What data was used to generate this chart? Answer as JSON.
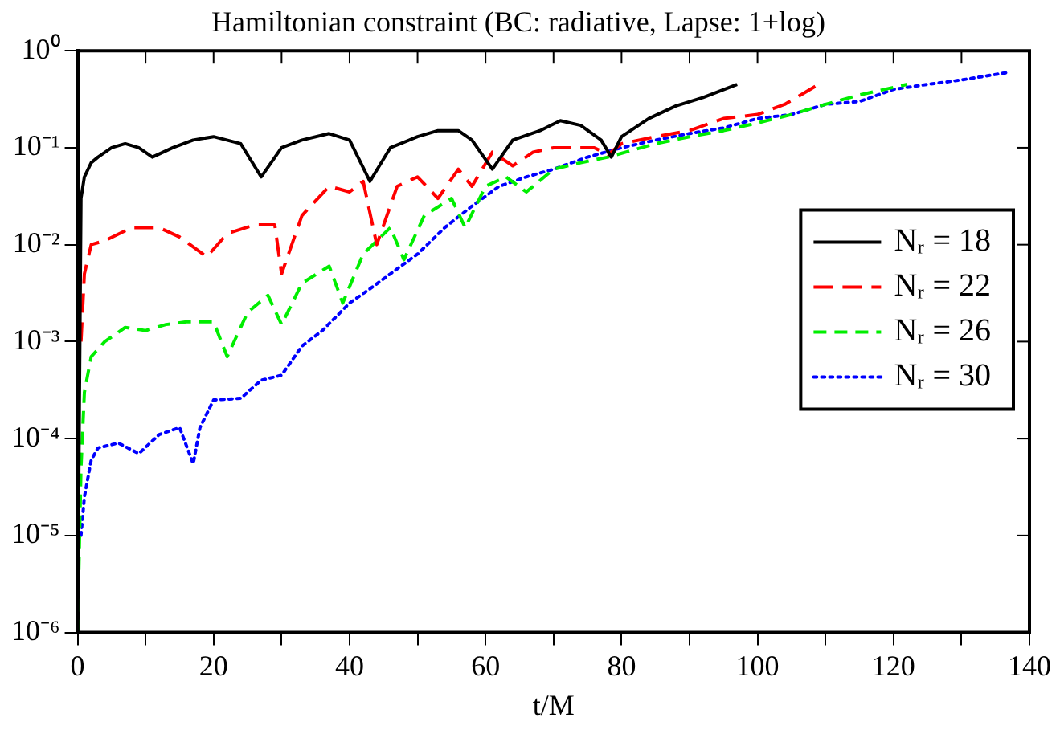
{
  "chart_data": {
    "type": "line",
    "title": "Hamiltonian constraint (BC: radiative, Lapse: 1+log)",
    "xlabel": "t/M",
    "log": "y",
    "grid": false,
    "legend": "right",
    "marker": "none",
    "xlim": [
      0,
      140
    ],
    "xticks": [
      0,
      {
        "value": 10,
        "label": null
      },
      20,
      {
        "value": 30,
        "label": null
      },
      40,
      {
        "value": 50,
        "label": null
      },
      60,
      {
        "value": 70,
        "label": null
      },
      80,
      {
        "value": 90,
        "label": null
      },
      100,
      {
        "value": 110,
        "label": null
      },
      120,
      {
        "value": 130,
        "label": null
      },
      140
    ],
    "ylim": [
      1e-06,
      1
    ],
    "yticks": [
      {
        "value": 1e-06,
        "label": "10⁻⁶"
      },
      {
        "value": 1e-05,
        "label": "10⁻⁵"
      },
      {
        "value": 0.0001,
        "label": "10⁻⁴"
      },
      {
        "value": 0.001,
        "label": "10⁻³"
      },
      {
        "value": 0.01,
        "label": "10⁻²"
      },
      {
        "value": 0.1,
        "label": "10⁻¹"
      },
      {
        "value": 1,
        "label": "10⁰"
      }
    ],
    "series": [
      {
        "name": "Nᵣ = 18",
        "color": "#000000",
        "line_style": "solid",
        "x": [
          0,
          0.5,
          1,
          2,
          3,
          5,
          7,
          9,
          11,
          14,
          17,
          20,
          24,
          27,
          30,
          33,
          37,
          40,
          43,
          46,
          50,
          53,
          56,
          58,
          61,
          64,
          68,
          71,
          74,
          77,
          78.5,
          80,
          84,
          88,
          92,
          97
        ],
        "values": [
          1e-06,
          0.03,
          0.05,
          0.07,
          0.08,
          0.1,
          0.11,
          0.1,
          0.08,
          0.1,
          0.12,
          0.13,
          0.11,
          0.05,
          0.1,
          0.12,
          0.14,
          0.12,
          0.045,
          0.1,
          0.13,
          0.15,
          0.15,
          0.12,
          0.06,
          0.12,
          0.15,
          0.19,
          0.17,
          0.12,
          0.08,
          0.13,
          0.2,
          0.27,
          0.33,
          0.45
        ]
      },
      {
        "name": "Nᵣ = 22",
        "color": "#ff0000",
        "line_style": "dashed",
        "x": [
          0.5,
          1,
          2,
          4,
          8,
          12,
          15,
          19,
          22,
          26,
          29,
          30,
          33,
          37,
          40,
          42,
          44,
          47,
          50,
          53,
          56,
          58,
          61,
          64,
          67,
          70,
          73,
          76,
          78,
          80,
          85,
          90,
          95,
          100,
          104,
          109
        ],
        "values": [
          0.001,
          0.005,
          0.01,
          0.011,
          0.015,
          0.015,
          0.012,
          0.0075,
          0.013,
          0.016,
          0.016,
          0.005,
          0.02,
          0.04,
          0.035,
          0.045,
          0.01,
          0.04,
          0.05,
          0.03,
          0.06,
          0.04,
          0.09,
          0.065,
          0.09,
          0.1,
          0.1,
          0.1,
          0.085,
          0.11,
          0.13,
          0.15,
          0.2,
          0.22,
          0.28,
          0.45
        ]
      },
      {
        "name": "Nᵣ = 26",
        "color": "#00ee00",
        "line_style": "dashed",
        "x": [
          0,
          0.5,
          1,
          2,
          4,
          7,
          10,
          13,
          16,
          20,
          22,
          25,
          28,
          30,
          33,
          37,
          39,
          42,
          46,
          48,
          51,
          55,
          57,
          60,
          63,
          66,
          70,
          74,
          78,
          85,
          90,
          95,
          100,
          105,
          110,
          115,
          122
        ],
        "values": [
          1e-06,
          5e-05,
          0.0003,
          0.0007,
          0.001,
          0.0014,
          0.0013,
          0.0015,
          0.0016,
          0.0016,
          0.0007,
          0.002,
          0.003,
          0.0015,
          0.004,
          0.006,
          0.0025,
          0.008,
          0.015,
          0.007,
          0.02,
          0.03,
          0.015,
          0.04,
          0.05,
          0.035,
          0.06,
          0.07,
          0.08,
          0.11,
          0.13,
          0.15,
          0.18,
          0.22,
          0.28,
          0.35,
          0.45
        ]
      },
      {
        "name": "Nᵣ = 30",
        "color": "#0000ff",
        "line_style": "dotted",
        "x": [
          0.5,
          1,
          2,
          3,
          6,
          9,
          12,
          15,
          17,
          18,
          20,
          24,
          27,
          30,
          33,
          36,
          40,
          43,
          46,
          50,
          54,
          58,
          62,
          66,
          70,
          75,
          80,
          85,
          90,
          95,
          100,
          105,
          110,
          115,
          120,
          125,
          130,
          137
        ],
        "values": [
          1e-05,
          2.5e-05,
          6e-05,
          8e-05,
          9e-05,
          7e-05,
          0.00011,
          0.00013,
          5.5e-05,
          0.00013,
          0.00025,
          0.00026,
          0.0004,
          0.00045,
          0.0009,
          0.0013,
          0.0025,
          0.0035,
          0.005,
          0.008,
          0.015,
          0.025,
          0.04,
          0.05,
          0.06,
          0.08,
          0.1,
          0.12,
          0.14,
          0.16,
          0.2,
          0.22,
          0.28,
          0.3,
          0.4,
          0.45,
          0.5,
          0.6
        ]
      }
    ]
  }
}
